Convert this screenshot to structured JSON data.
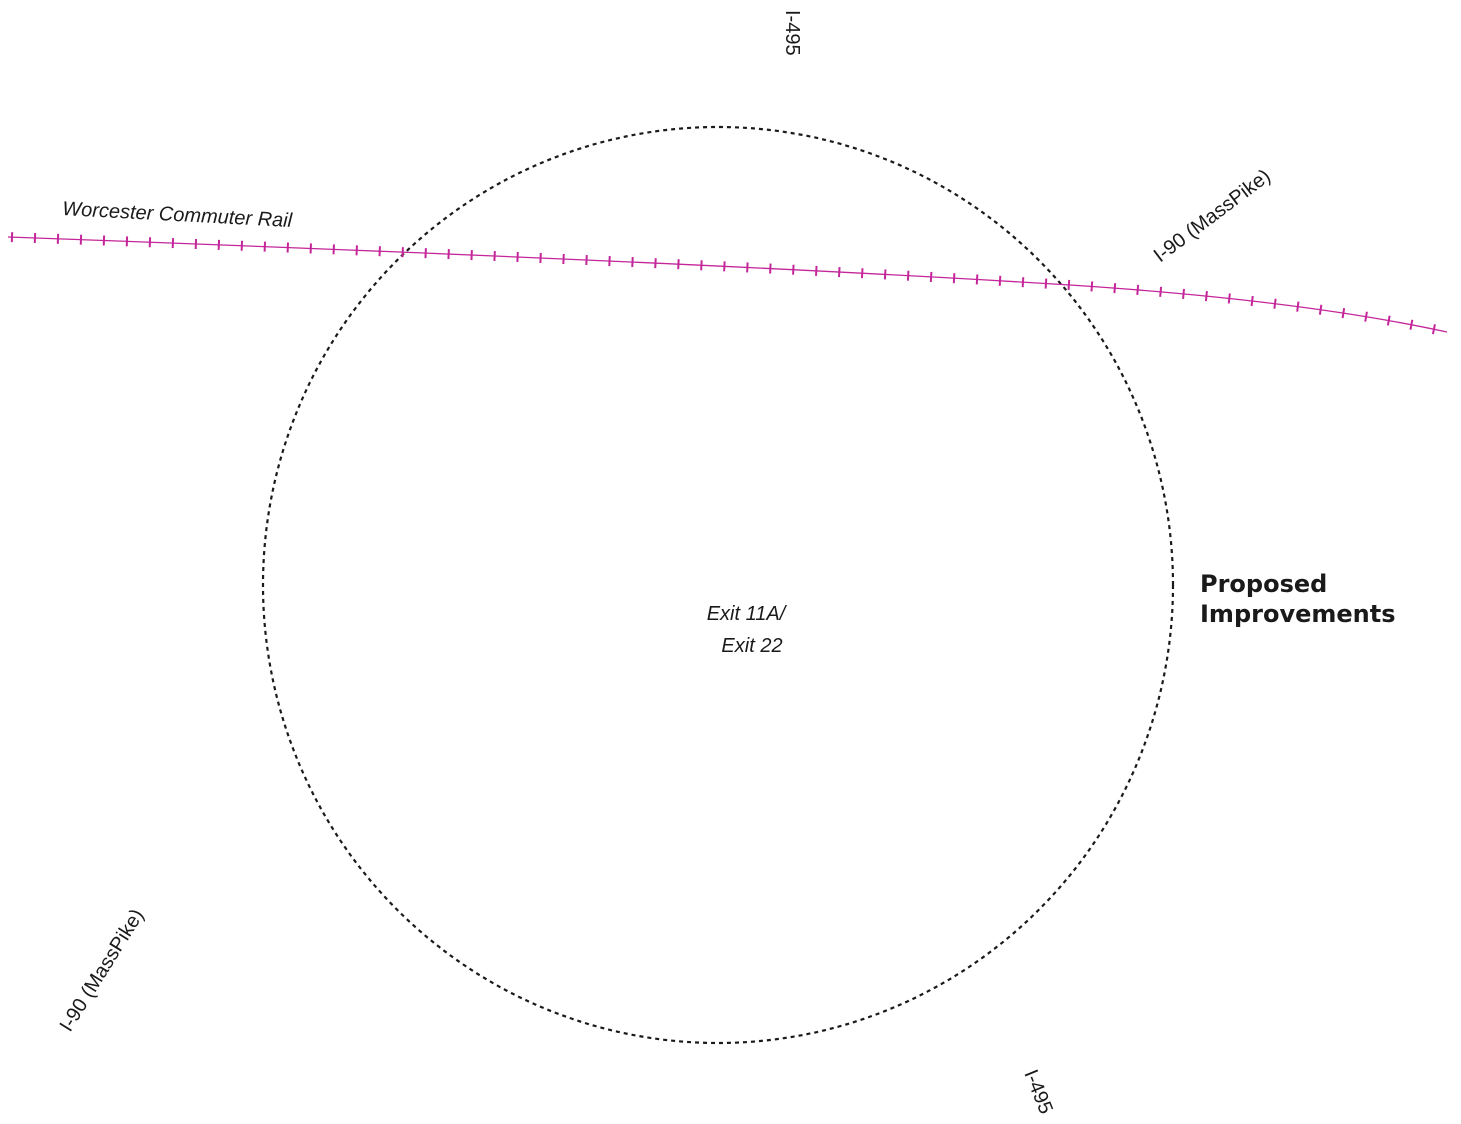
{
  "map": {
    "rail_label": "Worcester Commuter Rail",
    "highway_labels": {
      "i495_north": "I-495",
      "i495_south": "I-495",
      "i90_east": "I-90 (MassPike)",
      "i90_west": "I-90 (MassPike)"
    },
    "exit_label_line1": "Exit 11A/",
    "exit_label_line2": "Exit 22",
    "legend_line1": "Proposed",
    "legend_line2": "Improvements",
    "colors": {
      "rail": "#c4269a",
      "study_area_boundary": "#1a1a1a",
      "text": "#1a1a1a",
      "background": "#ffffff"
    },
    "study_area_style": "dashed circle"
  }
}
